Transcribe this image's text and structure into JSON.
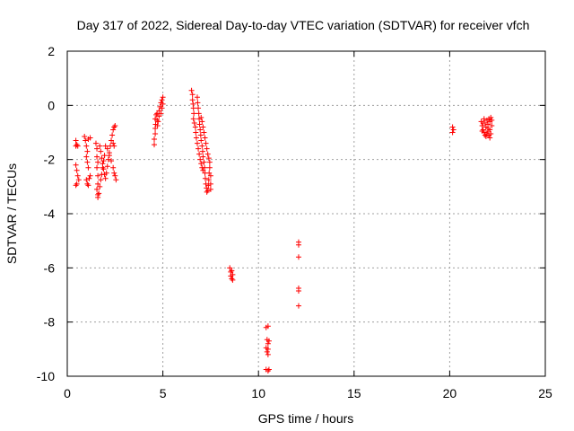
{
  "chart_data": {
    "type": "scatter",
    "title": "Day 317 of 2022, Sidereal Day-to-day VTEC variation (SDTVAR) for receiver vfch",
    "xlabel": "GPS time / hours",
    "ylabel": "SDTVAR / TECUs",
    "xlim": [
      0,
      25
    ],
    "ylim": [
      -10,
      2
    ],
    "xticks": [
      0,
      5,
      10,
      15,
      20,
      25
    ],
    "yticks": [
      -10,
      -8,
      -6,
      -4,
      -2,
      0,
      2
    ],
    "grid": true,
    "marker": "plus",
    "color": "#ff0000",
    "series": [
      {
        "name": "vfch",
        "points": [
          [
            0.45,
            -1.3
          ],
          [
            0.45,
            -1.5
          ],
          [
            0.5,
            -1.45
          ],
          [
            0.55,
            -1.5
          ],
          [
            0.45,
            -2.2
          ],
          [
            0.5,
            -2.4
          ],
          [
            0.55,
            -2.6
          ],
          [
            0.5,
            -2.9
          ],
          [
            0.45,
            -2.95
          ],
          [
            0.6,
            -2.75
          ],
          [
            0.9,
            -1.15
          ],
          [
            0.95,
            -1.3
          ],
          [
            1.0,
            -1.5
          ],
          [
            1.05,
            -1.7
          ],
          [
            1.0,
            -1.9
          ],
          [
            1.05,
            -2.1
          ],
          [
            1.1,
            -2.3
          ],
          [
            1.0,
            -2.75
          ],
          [
            1.05,
            -2.9
          ],
          [
            1.1,
            -2.95
          ],
          [
            1.15,
            -2.7
          ],
          [
            1.2,
            -2.6
          ],
          [
            1.1,
            -1.25
          ],
          [
            1.2,
            -1.2
          ],
          [
            1.5,
            -1.4
          ],
          [
            1.55,
            -1.6
          ],
          [
            1.55,
            -1.9
          ],
          [
            1.6,
            -2.1
          ],
          [
            1.55,
            -2.3
          ],
          [
            1.6,
            -2.6
          ],
          [
            1.6,
            -2.9
          ],
          [
            1.55,
            -3.1
          ],
          [
            1.6,
            -3.3
          ],
          [
            1.6,
            -3.4
          ],
          [
            1.65,
            -3.25
          ],
          [
            1.7,
            -3.0
          ],
          [
            1.75,
            -2.75
          ],
          [
            1.8,
            -2.55
          ],
          [
            1.85,
            -2.3
          ],
          [
            1.9,
            -2.05
          ],
          [
            1.95,
            -1.85
          ],
          [
            1.7,
            -1.5
          ],
          [
            1.75,
            -1.7
          ],
          [
            1.8,
            -1.95
          ],
          [
            1.85,
            -2.15
          ],
          [
            1.9,
            -2.35
          ],
          [
            1.95,
            -2.55
          ],
          [
            2.0,
            -2.7
          ],
          [
            2.05,
            -2.5
          ],
          [
            2.1,
            -2.25
          ],
          [
            2.15,
            -2.0
          ],
          [
            2.2,
            -1.75
          ],
          [
            2.25,
            -1.5
          ],
          [
            2.3,
            -1.3
          ],
          [
            2.35,
            -1.1
          ],
          [
            2.4,
            -0.9
          ],
          [
            2.45,
            -0.8
          ],
          [
            2.5,
            -0.75
          ],
          [
            2.0,
            -1.5
          ],
          [
            2.1,
            -1.6
          ],
          [
            2.2,
            -1.85
          ],
          [
            2.3,
            -2.05
          ],
          [
            2.4,
            -2.3
          ],
          [
            2.45,
            -2.5
          ],
          [
            2.5,
            -2.6
          ],
          [
            2.55,
            -2.75
          ],
          [
            2.4,
            -1.4
          ],
          [
            2.45,
            -1.5
          ],
          [
            4.55,
            -1.45
          ],
          [
            4.55,
            -1.25
          ],
          [
            4.6,
            -1.05
          ],
          [
            4.6,
            -0.85
          ],
          [
            4.62,
            -0.7
          ],
          [
            4.6,
            -0.5
          ],
          [
            4.65,
            -0.35
          ],
          [
            4.7,
            -0.3
          ],
          [
            4.7,
            -0.55
          ],
          [
            4.72,
            -0.75
          ],
          [
            4.75,
            -0.6
          ],
          [
            4.8,
            -0.4
          ],
          [
            4.8,
            -0.2
          ],
          [
            4.85,
            -0.05
          ],
          [
            4.9,
            0.1
          ],
          [
            4.95,
            0.2
          ],
          [
            5.0,
            0.3
          ],
          [
            4.9,
            -0.3
          ],
          [
            4.95,
            -0.1
          ],
          [
            5.0,
            0.05
          ],
          [
            6.5,
            0.55
          ],
          [
            6.55,
            0.4
          ],
          [
            6.55,
            0.2
          ],
          [
            6.58,
            0.05
          ],
          [
            6.6,
            -0.1
          ],
          [
            6.62,
            -0.3
          ],
          [
            6.6,
            -0.5
          ],
          [
            6.65,
            -0.65
          ],
          [
            6.7,
            -0.8
          ],
          [
            6.72,
            -1.0
          ],
          [
            6.75,
            -1.2
          ],
          [
            6.8,
            -1.4
          ],
          [
            6.85,
            -1.6
          ],
          [
            6.9,
            -1.8
          ],
          [
            6.95,
            -2.0
          ],
          [
            7.0,
            -2.15
          ],
          [
            7.05,
            -2.3
          ],
          [
            7.1,
            -2.4
          ],
          [
            6.8,
            0.3
          ],
          [
            6.82,
            0.1
          ],
          [
            6.85,
            -0.1
          ],
          [
            6.88,
            -0.3
          ],
          [
            6.9,
            -0.5
          ],
          [
            6.92,
            -0.7
          ],
          [
            6.95,
            -0.9
          ],
          [
            6.98,
            -1.1
          ],
          [
            7.0,
            -1.3
          ],
          [
            7.05,
            -1.5
          ],
          [
            7.08,
            -1.7
          ],
          [
            7.1,
            -1.9
          ],
          [
            7.15,
            -2.1
          ],
          [
            7.18,
            -2.3
          ],
          [
            7.2,
            -2.5
          ],
          [
            7.22,
            -2.7
          ],
          [
            7.25,
            -2.9
          ],
          [
            7.28,
            -3.05
          ],
          [
            7.3,
            -3.2
          ],
          [
            7.35,
            -3.15
          ],
          [
            7.38,
            -2.95
          ],
          [
            7.4,
            -2.75
          ],
          [
            7.42,
            -2.5
          ],
          [
            7.45,
            -2.3
          ],
          [
            7.45,
            -2.1
          ],
          [
            7.4,
            -1.95
          ],
          [
            7.35,
            -1.8
          ],
          [
            7.3,
            -1.6
          ],
          [
            7.25,
            -1.4
          ],
          [
            7.2,
            -1.2
          ],
          [
            7.15,
            -1.0
          ],
          [
            7.1,
            -0.8
          ],
          [
            7.05,
            -0.6
          ],
          [
            7.0,
            -0.45
          ],
          [
            7.5,
            -2.6
          ],
          [
            7.5,
            -2.9
          ],
          [
            7.5,
            -3.1
          ],
          [
            8.5,
            -6.0
          ],
          [
            8.55,
            -6.15
          ],
          [
            8.55,
            -6.3
          ],
          [
            8.6,
            -6.4
          ],
          [
            8.65,
            -6.25
          ],
          [
            8.6,
            -6.1
          ],
          [
            8.65,
            -6.45
          ],
          [
            10.4,
            -8.2
          ],
          [
            10.5,
            -8.15
          ],
          [
            10.45,
            -8.65
          ],
          [
            10.5,
            -8.8
          ],
          [
            10.4,
            -8.95
          ],
          [
            10.45,
            -9.1
          ],
          [
            10.5,
            -9.2
          ],
          [
            10.55,
            -8.7
          ],
          [
            10.5,
            -9.0
          ],
          [
            10.4,
            -9.75
          ],
          [
            10.5,
            -9.8
          ],
          [
            10.55,
            -9.75
          ],
          [
            12.1,
            -5.05
          ],
          [
            12.1,
            -5.15
          ],
          [
            12.1,
            -5.6
          ],
          [
            12.1,
            -6.75
          ],
          [
            12.1,
            -6.85
          ],
          [
            12.1,
            -7.4
          ],
          [
            20.15,
            -0.8
          ],
          [
            20.2,
            -0.9
          ],
          [
            20.15,
            -1.0
          ],
          [
            21.65,
            -0.6
          ],
          [
            21.7,
            -0.75
          ],
          [
            21.75,
            -0.9
          ],
          [
            21.8,
            -1.0
          ],
          [
            21.85,
            -1.1
          ],
          [
            21.9,
            -1.15
          ],
          [
            21.95,
            -1.05
          ],
          [
            22.0,
            -0.95
          ],
          [
            22.05,
            -1.1
          ],
          [
            22.1,
            -1.2
          ],
          [
            22.15,
            -1.05
          ],
          [
            21.8,
            -0.5
          ],
          [
            21.85,
            -0.65
          ],
          [
            21.9,
            -0.8
          ],
          [
            21.95,
            -0.55
          ],
          [
            22.0,
            -0.7
          ],
          [
            22.05,
            -0.5
          ],
          [
            22.1,
            -0.6
          ],
          [
            22.15,
            -0.45
          ],
          [
            22.2,
            -0.55
          ],
          [
            22.2,
            -0.75
          ],
          [
            21.7,
            -0.95
          ],
          [
            21.75,
            -0.65
          ],
          [
            22.0,
            -0.85
          ],
          [
            22.1,
            -0.9
          ]
        ]
      }
    ]
  }
}
